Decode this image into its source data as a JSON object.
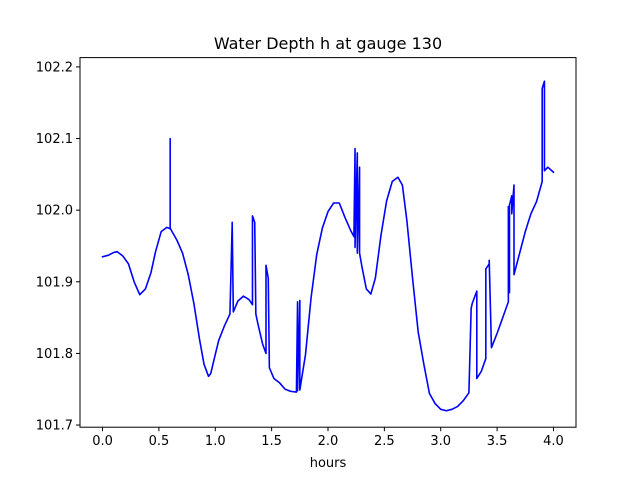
{
  "chart_data": {
    "type": "line",
    "title": "Water Depth h at gauge 130",
    "xlabel": "hours",
    "ylabel": "",
    "xlim": [
      -0.2,
      4.2
    ],
    "ylim": [
      101.697,
      102.213
    ],
    "xticks": [
      0.0,
      0.5,
      1.0,
      1.5,
      2.0,
      2.5,
      3.0,
      3.5,
      4.0
    ],
    "xtick_labels": [
      "0.0",
      "0.5",
      "1.0",
      "1.5",
      "2.0",
      "2.5",
      "3.0",
      "3.5",
      "4.0"
    ],
    "yticks": [
      101.7,
      101.8,
      101.9,
      102.0,
      102.1,
      102.2
    ],
    "ytick_labels": [
      "101.7",
      "101.8",
      "101.9",
      "102.0",
      "102.1",
      "102.2"
    ],
    "grid": false,
    "legend": "none",
    "series": [
      {
        "color": "#0000ff",
        "x": [
          0.0,
          0.05,
          0.1,
          0.13,
          0.18,
          0.23,
          0.28,
          0.33,
          0.38,
          0.43,
          0.47,
          0.52,
          0.57,
          0.6,
          0.6,
          0.6,
          0.61,
          0.66,
          0.71,
          0.76,
          0.81,
          0.86,
          0.9,
          0.94,
          0.96,
          0.99,
          1.03,
          1.08,
          1.13,
          1.15,
          1.15,
          1.16,
          1.16,
          1.2,
          1.25,
          1.3,
          1.33,
          1.33,
          1.35,
          1.36,
          1.38,
          1.42,
          1.45,
          1.45,
          1.47,
          1.48,
          1.52,
          1.57,
          1.62,
          1.67,
          1.72,
          1.73,
          1.73,
          1.75,
          1.75,
          1.8,
          1.85,
          1.9,
          1.95,
          2.0,
          2.05,
          2.1,
          2.15,
          2.2,
          2.23,
          2.24,
          2.24,
          2.26,
          2.26,
          2.28,
          2.28,
          2.3,
          2.34,
          2.38,
          2.42,
          2.47,
          2.52,
          2.57,
          2.62,
          2.66,
          2.7,
          2.75,
          2.8,
          2.85,
          2.9,
          2.95,
          3.0,
          3.05,
          3.1,
          3.15,
          3.2,
          3.25,
          3.27,
          3.28,
          3.32,
          3.32,
          3.36,
          3.4,
          3.4,
          3.43,
          3.43,
          3.45,
          3.5,
          3.55,
          3.6,
          3.6,
          3.61,
          3.61,
          3.63,
          3.63,
          3.65,
          3.65,
          3.7,
          3.75,
          3.8,
          3.85,
          3.9,
          3.9,
          3.92,
          3.92,
          3.95,
          4.0
        ],
        "y": [
          101.935,
          101.937,
          101.941,
          101.942,
          101.936,
          101.925,
          101.9,
          101.882,
          101.89,
          101.913,
          101.942,
          101.97,
          101.976,
          101.974,
          102.1,
          101.975,
          101.972,
          101.958,
          101.94,
          101.91,
          101.87,
          101.82,
          101.785,
          101.768,
          101.772,
          101.792,
          101.818,
          101.838,
          101.855,
          101.98,
          101.983,
          101.858,
          101.858,
          101.873,
          101.88,
          101.875,
          101.868,
          101.992,
          101.983,
          101.855,
          101.84,
          101.813,
          101.8,
          101.923,
          101.905,
          101.78,
          101.765,
          101.759,
          101.75,
          101.747,
          101.746,
          101.872,
          101.748,
          101.874,
          101.749,
          101.798,
          101.878,
          101.938,
          101.975,
          101.998,
          102.01,
          102.01,
          101.99,
          101.972,
          101.963,
          102.086,
          101.948,
          102.08,
          101.94,
          102.06,
          101.94,
          101.922,
          101.89,
          101.883,
          101.905,
          101.965,
          102.013,
          102.04,
          102.046,
          102.035,
          101.985,
          101.905,
          101.83,
          101.785,
          101.744,
          101.73,
          101.722,
          101.72,
          101.722,
          101.726,
          101.734,
          101.745,
          101.863,
          101.87,
          101.887,
          101.765,
          101.775,
          101.793,
          101.918,
          101.925,
          101.93,
          101.808,
          101.828,
          101.85,
          101.872,
          102.005,
          101.885,
          102.007,
          102.02,
          101.995,
          102.035,
          101.91,
          101.94,
          101.97,
          101.995,
          102.012,
          102.04,
          102.17,
          102.18,
          102.055,
          102.06,
          102.053
        ]
      }
    ]
  }
}
